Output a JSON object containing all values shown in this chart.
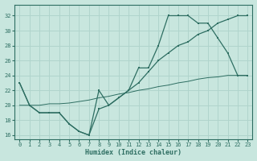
{
  "background_color": "#c8e6de",
  "grid_color": "#b0d4cc",
  "line_color": "#2e6e62",
  "xlabel": "Humidex (Indice chaleur)",
  "ylim": [
    15.5,
    33.5
  ],
  "xlim": [
    -0.5,
    23.5
  ],
  "yticks": [
    16,
    18,
    20,
    22,
    24,
    26,
    28,
    30,
    32
  ],
  "xticks": [
    0,
    1,
    2,
    3,
    4,
    5,
    6,
    7,
    8,
    9,
    10,
    11,
    12,
    13,
    14,
    15,
    16,
    17,
    18,
    19,
    20,
    21,
    22,
    23
  ],
  "line1_x": [
    0,
    1,
    2,
    3,
    4,
    5,
    6,
    7,
    8,
    9,
    10,
    11,
    12,
    13,
    14,
    15,
    16,
    17,
    18,
    19,
    20,
    21,
    22,
    23
  ],
  "line1_y": [
    23,
    20,
    19,
    19,
    19,
    17.5,
    16.5,
    16,
    22,
    20,
    21,
    22,
    25,
    25,
    28,
    32,
    32,
    32,
    31,
    31,
    29,
    27,
    24,
    24
  ],
  "line2_x": [
    0,
    1,
    2,
    3,
    4,
    5,
    6,
    7,
    8,
    9,
    10,
    11,
    12,
    13,
    14,
    15,
    16,
    17,
    18,
    19,
    20,
    21,
    22,
    23
  ],
  "line2_y": [
    23,
    20,
    19,
    19,
    19,
    17.5,
    16.5,
    16,
    19.5,
    20,
    21,
    22,
    23,
    24.5,
    26,
    27,
    28,
    28.5,
    29.5,
    30,
    31,
    31.5,
    32,
    32
  ],
  "line3_x": [
    0,
    1,
    2,
    3,
    4,
    5,
    6,
    7,
    8,
    9,
    10,
    11,
    12,
    13,
    14,
    15,
    16,
    17,
    18,
    19,
    20,
    21,
    22,
    23
  ],
  "line3_y": [
    20,
    20,
    20,
    20.2,
    20.2,
    20.3,
    20.5,
    20.7,
    21,
    21.2,
    21.5,
    21.7,
    22,
    22.2,
    22.5,
    22.7,
    23,
    23.2,
    23.5,
    23.7,
    23.8,
    24,
    24,
    24
  ]
}
